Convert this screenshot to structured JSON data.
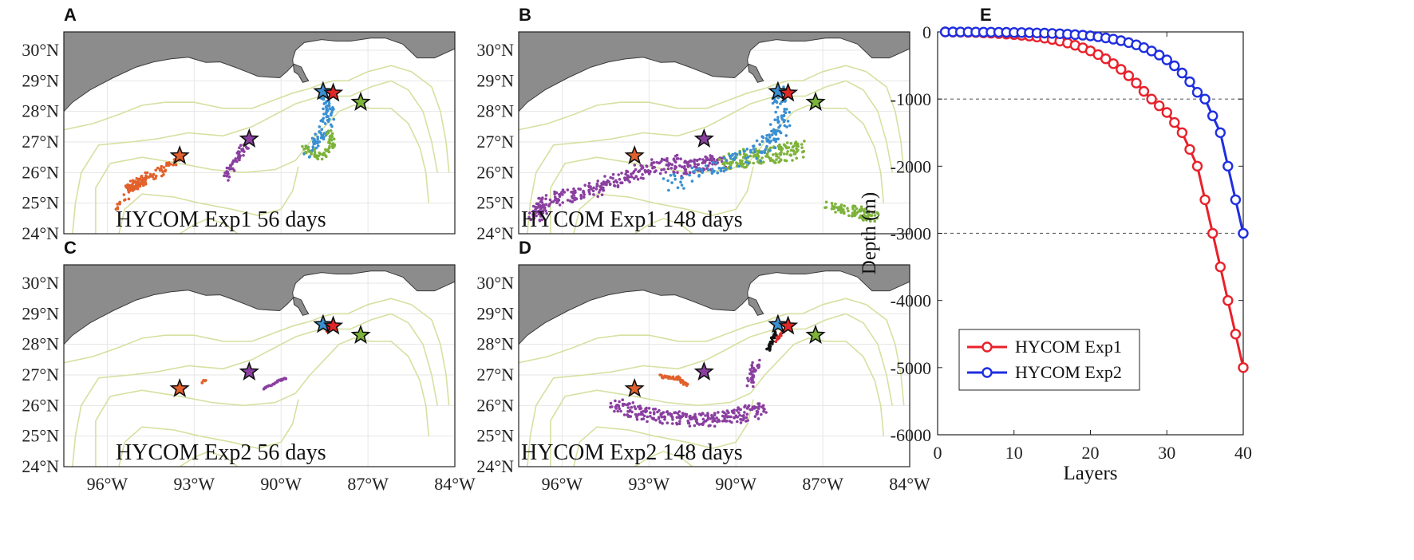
{
  "panels": [
    {
      "label": "A",
      "caption": "HYCOM Exp1 56 days"
    },
    {
      "label": "B",
      "caption": "HYCOM Exp1 148 days"
    },
    {
      "label": "C",
      "caption": "HYCOM Exp2 56 days"
    },
    {
      "label": "D",
      "caption": "HYCOM Exp2 148 days"
    }
  ],
  "map_axes": {
    "lat_ticks": [
      "30°N",
      "29°N",
      "28°N",
      "27°N",
      "26°N",
      "25°N",
      "24°N"
    ],
    "lon_ticks": [
      "96°W",
      "93°W",
      "90°W",
      "87°W",
      "84°W"
    ]
  },
  "chart_data": [
    {
      "type": "scatter",
      "panel": "A",
      "title": "HYCOM Exp1 56 days",
      "xlim": [
        -97.5,
        -84
      ],
      "ylim": [
        24,
        30.6
      ],
      "markers": [
        {
          "lon": -93.5,
          "lat": 26.55,
          "color": "#e2602b"
        },
        {
          "lon": -91.1,
          "lat": 27.1,
          "color": "#8a3fa0"
        },
        {
          "lon": -88.55,
          "lat": 28.65,
          "color": "#3a8fd2"
        },
        {
          "lon": -88.2,
          "lat": 28.6,
          "color": "#e02626"
        },
        {
          "lon": -87.25,
          "lat": 28.3,
          "color": "#7db33a"
        }
      ]
    },
    {
      "type": "scatter",
      "panel": "B",
      "title": "HYCOM Exp1 148 days",
      "xlim": [
        -97.5,
        -84
      ],
      "ylim": [
        24,
        30.6
      ],
      "markers": [
        {
          "lon": -93.5,
          "lat": 26.55,
          "color": "#e2602b"
        },
        {
          "lon": -91.1,
          "lat": 27.1,
          "color": "#8a3fa0"
        },
        {
          "lon": -88.55,
          "lat": 28.65,
          "color": "#3a8fd2"
        },
        {
          "lon": -88.2,
          "lat": 28.6,
          "color": "#e02626"
        },
        {
          "lon": -87.25,
          "lat": 28.3,
          "color": "#7db33a"
        }
      ]
    },
    {
      "type": "scatter",
      "panel": "C",
      "title": "HYCOM Exp2 56 days",
      "xlim": [
        -97.5,
        -84
      ],
      "ylim": [
        24,
        30.6
      ],
      "markers": [
        {
          "lon": -93.5,
          "lat": 26.55,
          "color": "#e2602b"
        },
        {
          "lon": -91.1,
          "lat": 27.1,
          "color": "#8a3fa0"
        },
        {
          "lon": -88.55,
          "lat": 28.65,
          "color": "#3a8fd2"
        },
        {
          "lon": -88.2,
          "lat": 28.6,
          "color": "#e02626"
        },
        {
          "lon": -87.25,
          "lat": 28.3,
          "color": "#7db33a"
        }
      ]
    },
    {
      "type": "scatter",
      "panel": "D",
      "title": "HYCOM Exp2 148 days",
      "xlim": [
        -97.5,
        -84
      ],
      "ylim": [
        24,
        30.6
      ],
      "markers": [
        {
          "lon": -93.5,
          "lat": 26.55,
          "color": "#e2602b"
        },
        {
          "lon": -91.1,
          "lat": 27.1,
          "color": "#8a3fa0"
        },
        {
          "lon": -88.55,
          "lat": 28.65,
          "color": "#3a8fd2"
        },
        {
          "lon": -88.2,
          "lat": 28.6,
          "color": "#e02626"
        },
        {
          "lon": -87.25,
          "lat": 28.3,
          "color": "#7db33a"
        }
      ]
    },
    {
      "type": "line",
      "panel": "E",
      "xlabel": "Layers",
      "ylabel": "Depth (m)",
      "xlim": [
        0,
        40
      ],
      "ylim": [
        -6000,
        0
      ],
      "xticks": [
        0,
        10,
        20,
        30,
        40
      ],
      "yticks": [
        0,
        -1000,
        -2000,
        -3000,
        -4000,
        -5000,
        -6000
      ],
      "reference_lines": [
        -1000,
        -3000
      ],
      "legend_position": "bottom-left",
      "series": [
        {
          "name": "HYCOM Exp1",
          "color": "#e8212b",
          "x": [
            1,
            2,
            3,
            4,
            5,
            6,
            7,
            8,
            9,
            10,
            11,
            12,
            13,
            14,
            15,
            16,
            17,
            18,
            19,
            20,
            21,
            22,
            23,
            24,
            25,
            26,
            27,
            28,
            29,
            30,
            31,
            32,
            33,
            34,
            35,
            36,
            37,
            38,
            39,
            40
          ],
          "y": [
            0,
            -2,
            -4,
            -7,
            -10,
            -14,
            -19,
            -25,
            -32,
            -40,
            -50,
            -62,
            -76,
            -93,
            -113,
            -137,
            -165,
            -198,
            -237,
            -283,
            -337,
            -400,
            -473,
            -557,
            -653,
            -762,
            -885,
            -1000,
            -1100,
            -1200,
            -1350,
            -1500,
            -1750,
            -2000,
            -2500,
            -3000,
            -3500,
            -4000,
            -4500,
            -5000
          ]
        },
        {
          "name": "HYCOM Exp2",
          "color": "#1f2ee0",
          "x": [
            1,
            2,
            3,
            4,
            5,
            6,
            7,
            8,
            9,
            10,
            11,
            12,
            13,
            14,
            15,
            16,
            17,
            18,
            19,
            20,
            21,
            22,
            23,
            24,
            25,
            26,
            27,
            28,
            29,
            30,
            31,
            32,
            33,
            34,
            35,
            36,
            37,
            38,
            39,
            40
          ],
          "y": [
            0,
            0,
            -1,
            -1,
            -2,
            -3,
            -4,
            -5,
            -6,
            -8,
            -10,
            -12,
            -15,
            -18,
            -22,
            -27,
            -33,
            -40,
            -49,
            -60,
            -73,
            -89,
            -108,
            -131,
            -159,
            -193,
            -234,
            -284,
            -344,
            -417,
            -505,
            -612,
            -742,
            -899,
            -1000,
            -1250,
            -1500,
            -2000,
            -2500,
            -3000
          ]
        }
      ]
    }
  ]
}
